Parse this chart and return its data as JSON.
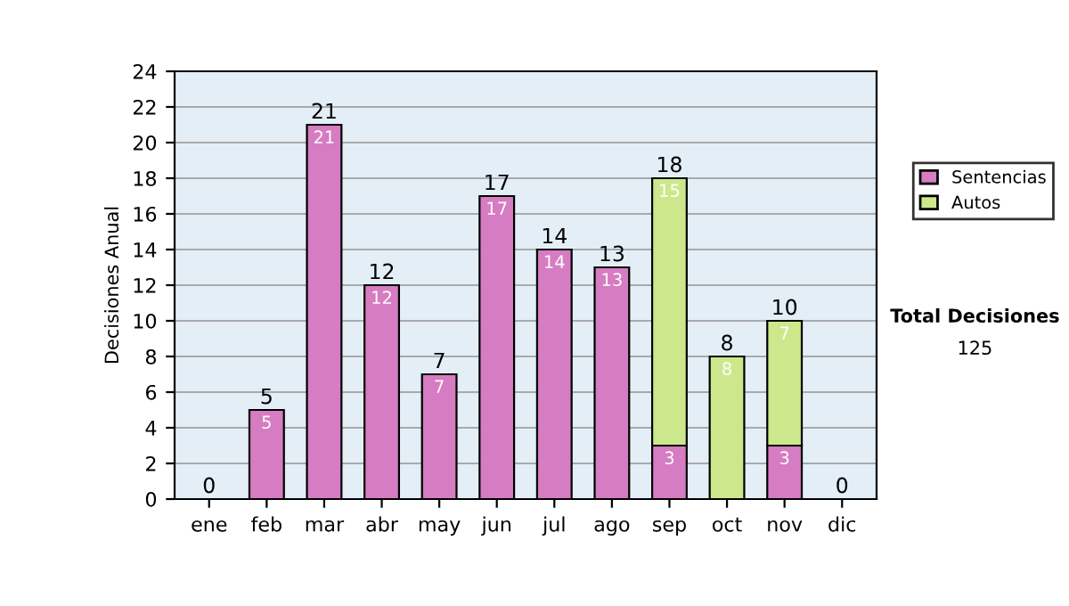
{
  "chart_data": {
    "type": "bar",
    "stacked": true,
    "ylabel": "Decisiones Anual",
    "categories": [
      "ene",
      "feb",
      "mar",
      "abr",
      "may",
      "jun",
      "jul",
      "ago",
      "sep",
      "oct",
      "nov",
      "dic"
    ],
    "series": [
      {
        "name": "Sentencias",
        "color": "#d67cc2",
        "values": [
          0,
          5,
          21,
          12,
          7,
          17,
          14,
          13,
          3,
          0,
          3,
          0
        ],
        "value_labels": [
          null,
          "5",
          "21",
          "12",
          "7",
          "17",
          "14",
          "13",
          "3",
          null,
          "3",
          null
        ]
      },
      {
        "name": "Autos",
        "color": "#cde88c",
        "values": [
          0,
          0,
          0,
          0,
          0,
          0,
          0,
          0,
          15,
          8,
          7,
          0
        ],
        "value_labels": [
          null,
          null,
          null,
          null,
          null,
          null,
          null,
          null,
          "15",
          "8",
          "7",
          null
        ]
      }
    ],
    "totals": [
      "0",
      "5",
      "21",
      "12",
      "7",
      "17",
      "14",
      "13",
      "18",
      "8",
      "10",
      "0"
    ],
    "ylim": [
      0,
      24
    ],
    "yticks": [
      0,
      2,
      4,
      6,
      8,
      10,
      12,
      14,
      16,
      18,
      20,
      22,
      24
    ],
    "grid": "y",
    "legend": "right",
    "annotations": [
      "Total Decisiones",
      "125"
    ]
  }
}
